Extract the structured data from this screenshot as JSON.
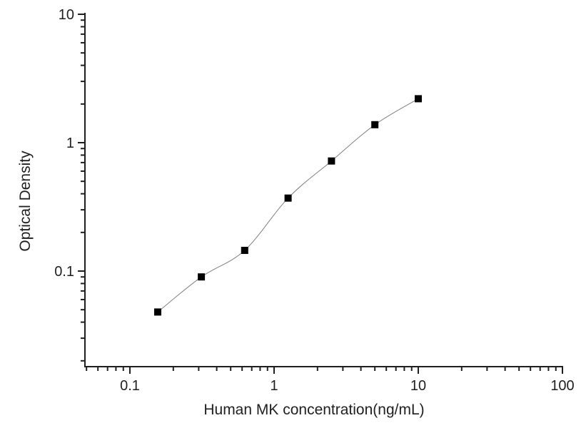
{
  "page": {
    "background": "#ffffff"
  },
  "chart_data": {
    "type": "scatter",
    "title": "",
    "xlabel": "Human MK concentration(ng/mL)",
    "ylabel": "Optical Density",
    "x_scale": "log",
    "y_scale": "log",
    "xlim": [
      0.05,
      100
    ],
    "ylim": [
      0.018,
      10
    ],
    "grid": false,
    "legend": false,
    "x_major_ticks": {
      "values": [
        0.1,
        1,
        10,
        100
      ],
      "labels": [
        "0.1",
        "1",
        "10",
        "100"
      ]
    },
    "y_major_ticks": {
      "values": [
        0.1,
        1,
        10
      ],
      "labels": [
        "0.1",
        "1",
        "10"
      ]
    },
    "minor_ticks": "log-subdivisions-2-to-9",
    "tick_direction": "outward",
    "series": [
      {
        "name": "standard-curve",
        "marker": "filled-square",
        "marker_size": 10,
        "marker_color": "#000000",
        "line": "smooth",
        "line_color": "#7f7f7f",
        "x": [
          0.156,
          0.313,
          0.625,
          1.25,
          2.5,
          5,
          10
        ],
        "y": [
          0.048,
          0.09,
          0.145,
          0.37,
          0.72,
          1.38,
          2.2
        ]
      }
    ],
    "colors": {
      "axis": "#1f1f1f",
      "text": "#1f1f1f",
      "background": "#ffffff"
    }
  }
}
